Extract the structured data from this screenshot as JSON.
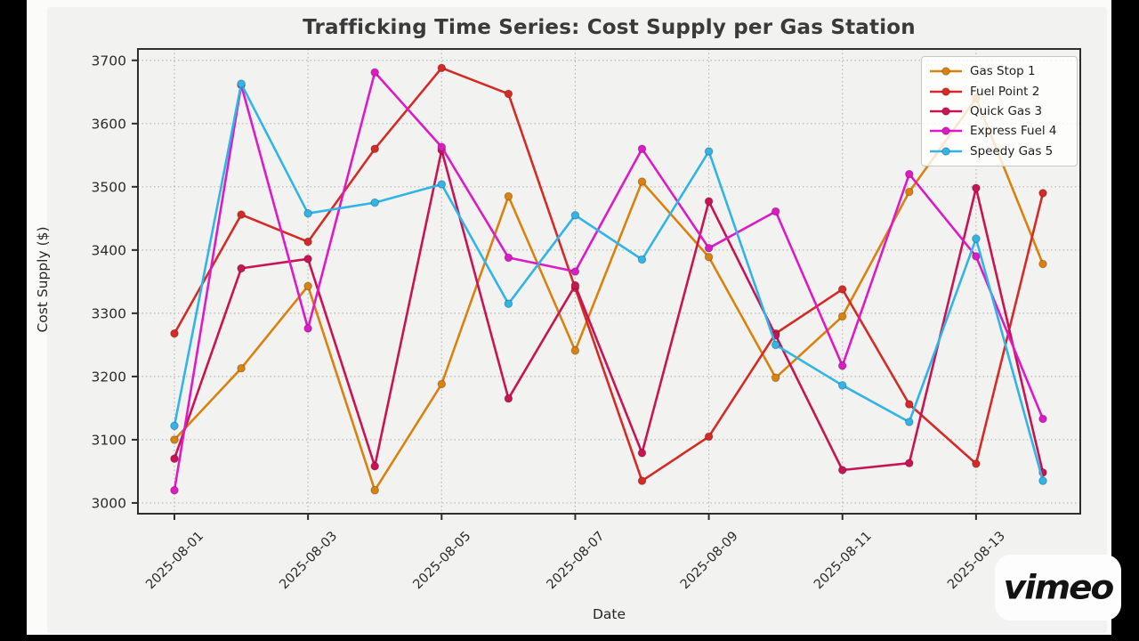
{
  "chart_data": {
    "type": "line",
    "title": "Trafficking Time Series: Cost Supply per Gas Station",
    "xlabel": "Date",
    "ylabel": "Cost Supply ($)",
    "x": [
      "2025-08-01",
      "2025-08-02",
      "2025-08-03",
      "2025-08-04",
      "2025-08-05",
      "2025-08-06",
      "2025-08-07",
      "2025-08-08",
      "2025-08-09",
      "2025-08-10",
      "2025-08-11",
      "2025-08-12",
      "2025-08-13",
      "2025-08-14"
    ],
    "x_tick_labels": [
      "2025-08-01",
      "2025-08-03",
      "2025-08-05",
      "2025-08-07",
      "2025-08-09",
      "2025-08-11",
      "2025-08-13"
    ],
    "y_ticks": [
      3000,
      3100,
      3200,
      3300,
      3400,
      3500,
      3600,
      3700
    ],
    "ylim": [
      2983,
      3718
    ],
    "grid": true,
    "grid_style": "dotted",
    "legend_position": "upper right",
    "series": [
      {
        "name": "Gas Stop 1",
        "color": "#d9820f",
        "values": [
          3100,
          3213,
          3343,
          3020,
          3188,
          3485,
          3241,
          3508,
          3389,
          3198,
          3295,
          3492,
          3640,
          3378
        ]
      },
      {
        "name": "Fuel Point 2",
        "color": "#d42b27",
        "values": [
          3268,
          3456,
          3413,
          3560,
          3688,
          3647,
          3340,
          3035,
          3105,
          3268,
          3338,
          3156,
          3062,
          3490
        ]
      },
      {
        "name": "Quick Gas 3",
        "color": "#c81355",
        "values": [
          3070,
          3371,
          3386,
          3058,
          3558,
          3165,
          3344,
          3079,
          3477,
          3265,
          3052,
          3063,
          3498,
          3048
        ]
      },
      {
        "name": "Express Fuel 4",
        "color": "#dd1bc5",
        "values": [
          3020,
          3661,
          3276,
          3681,
          3563,
          3388,
          3366,
          3560,
          3403,
          3461,
          3217,
          3520,
          3390,
          3133
        ]
      },
      {
        "name": "Speedy Gas 5",
        "color": "#31b4e6",
        "values": [
          3122,
          3663,
          3458,
          3475,
          3504,
          3315,
          3455,
          3385,
          3556,
          3250,
          3186,
          3128,
          3418,
          3035
        ]
      }
    ],
    "axis_color": "#2e2e2e",
    "gridline_color": "#b8b8b8",
    "tick_label_color": "#2b2b2b"
  },
  "watermark": {
    "label": "vimeo"
  }
}
